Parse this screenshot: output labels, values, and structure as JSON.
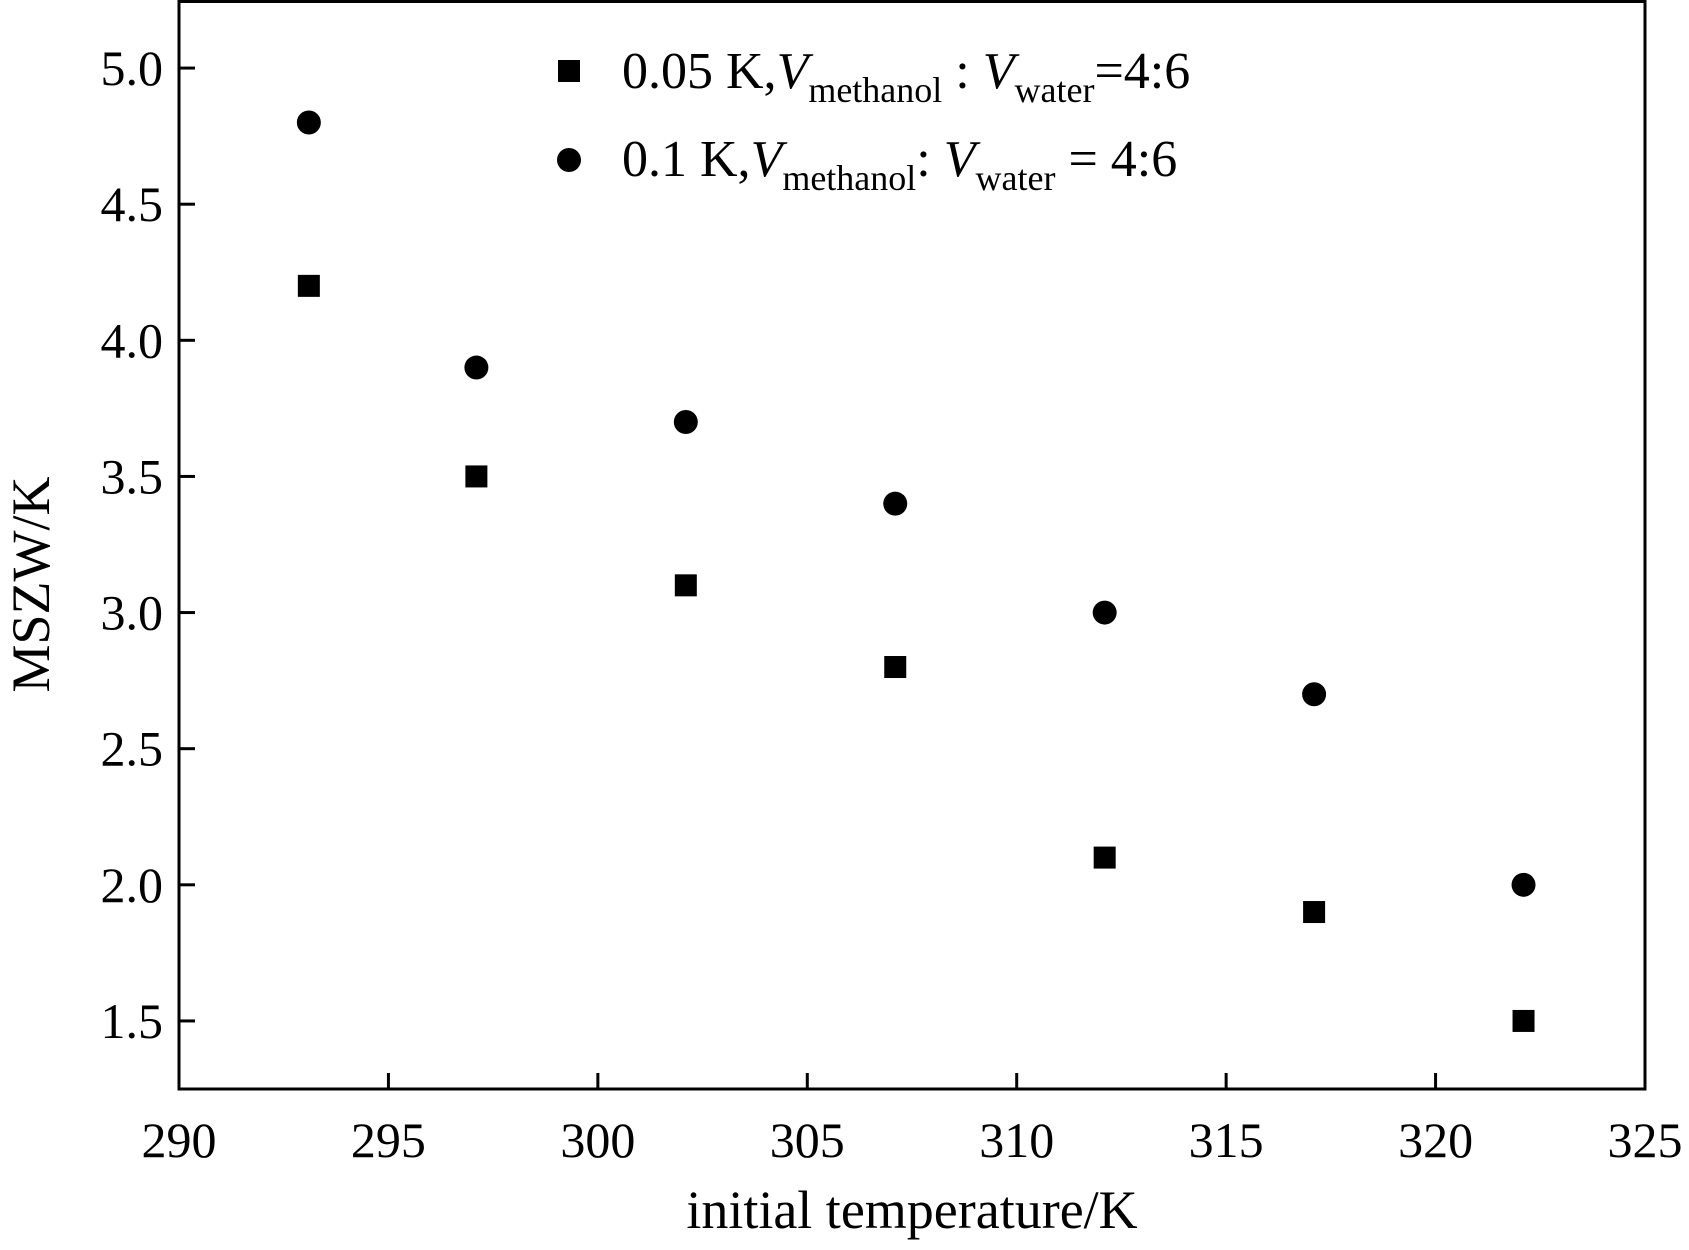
{
  "chart_data": {
    "type": "scatter",
    "xlabel": "initial temperature/K",
    "ylabel": "MSZW/K",
    "xlim": [
      290,
      325
    ],
    "ylim": [
      1.25,
      5.25
    ],
    "xticks": [
      290,
      295,
      300,
      305,
      310,
      315,
      320,
      325
    ],
    "yticks": [
      1.5,
      2.0,
      2.5,
      3.0,
      3.5,
      4.0,
      4.5,
      5.0
    ],
    "xtick_labels": [
      "290",
      "295",
      "300",
      "305",
      "310",
      "315",
      "320",
      "325"
    ],
    "ytick_labels": [
      "1.5",
      "2.0",
      "2.5",
      "3.0",
      "3.5",
      "4.0",
      "4.5",
      "5.0"
    ],
    "grid": false,
    "legend_position": "top-center",
    "series": [
      {
        "marker": "square",
        "color": "#000000",
        "legend": {
          "prefix": "0.05 K,",
          "v1": "V",
          "sub1": "methanol",
          "mid": " : ",
          "v2": "V",
          "sub2": "water",
          "suffix": "=4:6"
        },
        "x": [
          293.1,
          297.1,
          302.1,
          307.1,
          312.1,
          317.1,
          322.1
        ],
        "y": [
          4.2,
          3.5,
          3.1,
          2.8,
          2.1,
          1.9,
          1.5
        ]
      },
      {
        "marker": "circle",
        "color": "#000000",
        "legend": {
          "prefix": "0.1 K,",
          "v1": "V",
          "sub1": "methanol",
          "mid": ": ",
          "v2": "V",
          "sub2": "water",
          "suffix": " = 4:6"
        },
        "x": [
          293.1,
          297.1,
          302.1,
          307.1,
          312.1,
          317.1,
          322.1
        ],
        "y": [
          4.8,
          3.9,
          3.7,
          3.4,
          3.0,
          2.7,
          2.0
        ]
      }
    ]
  }
}
